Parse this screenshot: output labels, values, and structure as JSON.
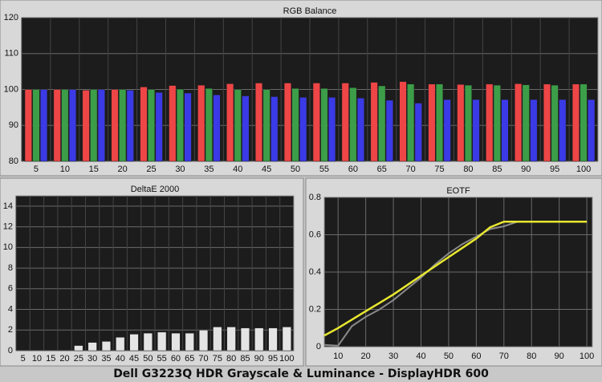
{
  "caption": "Dell G3223Q HDR Grayscale & Luminance - DisplayHDR 600",
  "chart_data": [
    {
      "type": "bar",
      "title": "RGB Balance",
      "categories": [
        "5",
        "10",
        "15",
        "20",
        "25",
        "30",
        "35",
        "40",
        "45",
        "50",
        "55",
        "60",
        "65",
        "70",
        "75",
        "80",
        "85",
        "90",
        "95",
        "100"
      ],
      "series": [
        {
          "color": "#ee4646",
          "values": [
            100,
            100,
            99.8,
            100,
            100.7,
            101.1,
            101.2,
            101.6,
            101.8,
            101.8,
            101.8,
            101.8,
            102,
            102.2,
            101.5,
            101.4,
            101.5,
            101.6,
            101.5,
            101.5
          ]
        },
        {
          "color": "#3c9e48",
          "values": [
            100,
            100,
            100,
            100,
            100,
            100.1,
            100.3,
            100,
            100,
            100.3,
            100.3,
            100.5,
            101,
            101.5,
            101.5,
            101.2,
            101.2,
            101.3,
            101.2,
            101.5
          ]
        },
        {
          "color": "#3a3ae6",
          "values": [
            100,
            100,
            100,
            99.8,
            99.2,
            99,
            98.5,
            98.2,
            98,
            97.8,
            97.8,
            97.6,
            97,
            96.2,
            97.2,
            97.2,
            97.2,
            97.2,
            97.2,
            97.2
          ]
        }
      ],
      "ylim": [
        80,
        120
      ],
      "yticks": [
        80,
        90,
        100,
        110,
        120
      ],
      "grid": true
    },
    {
      "type": "bar",
      "title": "DeltaE 2000",
      "categories": [
        "5",
        "10",
        "15",
        "20",
        "25",
        "30",
        "35",
        "40",
        "45",
        "50",
        "55",
        "60",
        "65",
        "70",
        "75",
        "80",
        "85",
        "90",
        "95",
        "100"
      ],
      "series": [
        {
          "color": "#e4e4e4",
          "values": [
            0,
            0,
            0,
            0,
            0.5,
            0.8,
            0.9,
            1.3,
            1.6,
            1.7,
            1.8,
            1.7,
            1.7,
            2.0,
            2.3,
            2.3,
            2.2,
            2.2,
            2.2,
            2.3
          ]
        }
      ],
      "ylim": [
        0,
        15
      ],
      "yticks": [
        0,
        2,
        4,
        6,
        8,
        10,
        12,
        14
      ],
      "grid": true
    },
    {
      "type": "line",
      "title": "EOTF",
      "x": [
        5,
        10,
        15,
        20,
        25,
        30,
        35,
        40,
        45,
        50,
        55,
        60,
        65,
        70,
        75,
        80,
        85,
        90,
        95,
        100
      ],
      "series": [
        {
          "color": "#8a8a8a",
          "values": [
            0.01,
            0.005,
            0.11,
            0.16,
            0.2,
            0.25,
            0.31,
            0.37,
            0.44,
            0.5,
            0.55,
            0.59,
            0.63,
            0.645,
            0.67,
            0.67,
            0.67,
            0.67,
            0.67,
            0.67
          ]
        },
        {
          "color": "#e8e830",
          "values": [
            0.06,
            0.1,
            0.145,
            0.19,
            0.235,
            0.28,
            0.33,
            0.38,
            0.43,
            0.48,
            0.53,
            0.58,
            0.64,
            0.67,
            0.67,
            0.67,
            0.67,
            0.67,
            0.67,
            0.67
          ]
        }
      ],
      "xlim": [
        5,
        102
      ],
      "xticks": [
        10,
        20,
        30,
        40,
        50,
        60,
        70,
        80,
        90,
        100
      ],
      "ylim": [
        0,
        0.8
      ],
      "yticks": [
        0,
        0.2,
        0.4,
        0.6,
        0.8
      ],
      "grid": true
    }
  ]
}
